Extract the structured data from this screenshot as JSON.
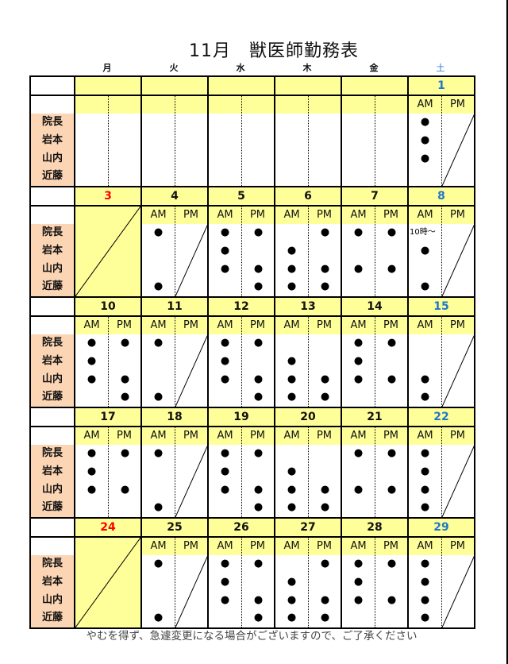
{
  "title": "11月　獣医師勤務表",
  "weekdays": [
    "月",
    "火",
    "水",
    "木",
    "金",
    "土"
  ],
  "staff": [
    "院長",
    "岩本",
    "山内",
    "近藤"
  ],
  "ampm_labels": {
    "am": "AM",
    "pm": "PM"
  },
  "colors": {
    "header_yellow": "#ffff99",
    "staff_peach": "#fcd5b4",
    "holiday_red": "#ff0000",
    "saturday_blue": "#1f78c8"
  },
  "weeks": [
    {
      "days": [
        {
          "date": "",
          "blank": true
        },
        {
          "date": "",
          "blank": true
        },
        {
          "date": "",
          "blank": true
        },
        {
          "date": "",
          "blank": true
        },
        {
          "date": "",
          "blank": true
        },
        {
          "date": "1",
          "sat": true,
          "am": [
            "●",
            "●",
            "●",
            ""
          ],
          "pm_closed": true
        }
      ]
    },
    {
      "days": [
        {
          "date": "3",
          "holiday": true
        },
        {
          "date": "4",
          "am": [
            "●",
            "",
            "",
            "●"
          ],
          "pm_closed": true
        },
        {
          "date": "5",
          "am": [
            "●",
            "●",
            "●",
            ""
          ],
          "pm": [
            "●",
            "",
            "●",
            "●"
          ]
        },
        {
          "date": "6",
          "am": [
            "",
            "●",
            "●",
            "●"
          ],
          "pm": [
            "●",
            "",
            "●",
            "●"
          ]
        },
        {
          "date": "7",
          "am": [
            "●",
            "",
            "●",
            ""
          ],
          "pm": [
            "●",
            "",
            "●",
            ""
          ]
        },
        {
          "date": "8",
          "sat": true,
          "am": [
            "10時～",
            "●",
            "",
            "●"
          ],
          "pm_closed": true
        }
      ]
    },
    {
      "days": [
        {
          "date": "10",
          "am": [
            "●",
            "●",
            "●",
            ""
          ],
          "pm": [
            "●",
            "",
            "●",
            "●"
          ]
        },
        {
          "date": "11",
          "am": [
            "●",
            "",
            "",
            "●"
          ],
          "pm_closed": true
        },
        {
          "date": "12",
          "am": [
            "●",
            "●",
            "●",
            ""
          ],
          "pm": [
            "●",
            "",
            "●",
            "●"
          ]
        },
        {
          "date": "13",
          "am": [
            "",
            "●",
            "●",
            "●"
          ],
          "pm": [
            "",
            "",
            "●",
            "●"
          ]
        },
        {
          "date": "14",
          "am": [
            "●",
            "●",
            "●",
            ""
          ],
          "pm": [
            "●",
            "",
            "●",
            ""
          ]
        },
        {
          "date": "15",
          "sat": true,
          "am": [
            "",
            "",
            "●",
            "●"
          ],
          "pm_closed": true
        }
      ]
    },
    {
      "days": [
        {
          "date": "17",
          "am": [
            "●",
            "●",
            "●",
            ""
          ],
          "pm": [
            "●",
            "",
            "●",
            ""
          ]
        },
        {
          "date": "18",
          "am": [
            "●",
            "",
            "",
            "●"
          ],
          "pm_closed": true
        },
        {
          "date": "19",
          "am": [
            "●",
            "●",
            "●",
            ""
          ],
          "pm": [
            "●",
            "",
            "●",
            "●"
          ]
        },
        {
          "date": "20",
          "am": [
            "",
            "●",
            "●",
            "●"
          ],
          "pm": [
            "",
            "",
            "●",
            "●"
          ]
        },
        {
          "date": "21",
          "am": [
            "●",
            "",
            "●",
            ""
          ],
          "pm": [
            "●",
            "",
            "●",
            ""
          ]
        },
        {
          "date": "22",
          "sat": true,
          "am": [
            "●",
            "●",
            "●",
            "●"
          ],
          "pm_closed": true
        }
      ]
    },
    {
      "days": [
        {
          "date": "24",
          "holiday": true
        },
        {
          "date": "25",
          "am": [
            "●",
            "",
            "",
            "●"
          ],
          "pm_closed": true
        },
        {
          "date": "26",
          "am": [
            "●",
            "●",
            "●",
            ""
          ],
          "pm": [
            "●",
            "",
            "●",
            "●"
          ]
        },
        {
          "date": "27",
          "am": [
            "",
            "●",
            "●",
            "●"
          ],
          "pm": [
            "●",
            "",
            "●",
            "●"
          ]
        },
        {
          "date": "28",
          "am": [
            "●",
            "●",
            "●",
            ""
          ],
          "pm": [
            "●",
            "",
            "●",
            ""
          ]
        },
        {
          "date": "29",
          "sat": true,
          "am": [
            "●",
            "●",
            "●",
            "●"
          ],
          "pm_closed": true
        }
      ]
    }
  ],
  "footer": "やむを得ず、急遽変更になる場合がございますので、ご了承ください"
}
